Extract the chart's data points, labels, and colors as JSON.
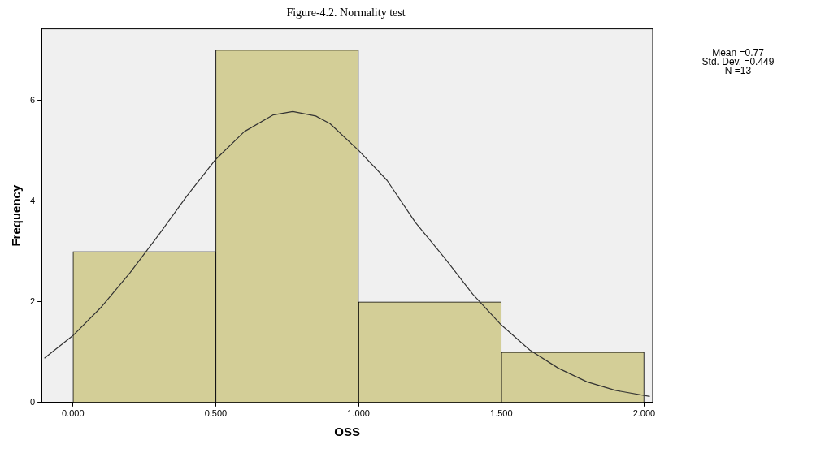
{
  "chart_data": {
    "type": "histogram",
    "title": "Figure-4.2. Normality test",
    "xlabel": "OSS",
    "ylabel": "Frequency",
    "bins": [
      0,
      0.5,
      1,
      1.5,
      2
    ],
    "values": [
      3,
      7,
      2,
      1
    ],
    "color": "#d3ce97",
    "series": [
      {
        "type": "line",
        "color": "#333333",
        "x": [
          -0.1,
          0,
          0.1,
          0.2,
          0.3,
          0.4,
          0.5,
          0.6,
          0.7,
          0.77,
          0.85,
          0.9,
          1.0,
          1.1,
          1.2,
          1.3,
          1.4,
          1.5,
          1.6,
          1.7,
          1.8,
          1.9,
          2.02
        ],
        "values": [
          0.88,
          1.33,
          1.9,
          2.58,
          3.33,
          4.11,
          4.83,
          5.38,
          5.71,
          5.78,
          5.69,
          5.54,
          5.01,
          4.41,
          3.57,
          2.88,
          2.15,
          1.54,
          1.04,
          0.68,
          0.41,
          0.24,
          0.12
        ]
      }
    ],
    "xlim": [
      -0.11,
      2.03
    ],
    "xticks": [
      {
        "value": 0,
        "label": "0.000"
      },
      {
        "value": 0.5,
        "label": "0.500"
      },
      {
        "value": 1,
        "label": "1.000"
      },
      {
        "value": 1.5,
        "label": "1.500"
      },
      {
        "value": 2,
        "label": "2.000"
      }
    ],
    "ylim": [
      0,
      7.42
    ],
    "yticks": [
      0,
      2,
      4,
      6
    ],
    "annotations": [
      "Mean =0.77",
      "Std. Dev. =0.449",
      "N =13"
    ],
    "grid": false,
    "legend": false
  }
}
